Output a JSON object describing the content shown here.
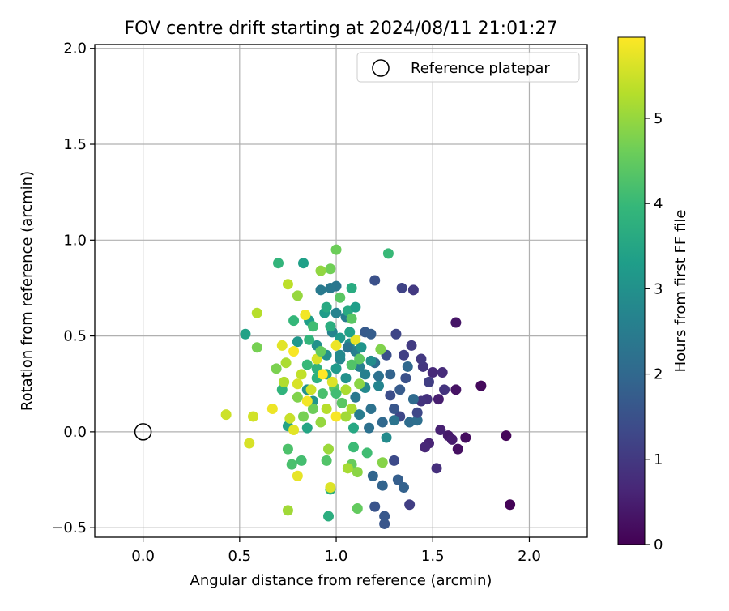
{
  "chart_data": {
    "type": "scatter",
    "title": "FOV centre drift starting at 2024/08/11 21:01:27",
    "xlabel": "Angular distance from reference (arcmin)",
    "ylabel": "Rotation from reference (arcmin)",
    "xlim": [
      -0.25,
      2.3
    ],
    "ylim": [
      -0.55,
      2.02
    ],
    "xticks": [
      0.0,
      0.5,
      1.0,
      1.5,
      2.0
    ],
    "xtick_labels": [
      "0.0",
      "0.5",
      "1.0",
      "1.5",
      "2.0"
    ],
    "yticks": [
      -0.5,
      0.0,
      0.5,
      1.0,
      1.5,
      2.0
    ],
    "ytick_labels": [
      "−0.5",
      "0.0",
      "0.5",
      "1.0",
      "1.5",
      "2.0"
    ],
    "grid": true,
    "legend": {
      "position": "top-right",
      "label": "Reference platepar"
    },
    "reference_point": {
      "x": 0.0,
      "y": 0.0
    },
    "colorbar": {
      "label": "Hours from first FF file",
      "range": [
        0,
        5.95
      ],
      "ticks": [
        0,
        1,
        2,
        3,
        4,
        5
      ],
      "tick_labels": [
        "0",
        "1",
        "2",
        "3",
        "4",
        "5"
      ],
      "colormap": [
        "#440154",
        "#482878",
        "#3e4989",
        "#31688e",
        "#26828e",
        "#1f9e89",
        "#35b779",
        "#6ece58",
        "#b5de2b",
        "#fde725"
      ]
    },
    "series": [
      {
        "name": "FOV centre",
        "points": [
          {
            "x": 1.9,
            "y": -0.38,
            "t": 0.05
          },
          {
            "x": 1.88,
            "y": -0.02,
            "t": 0.1
          },
          {
            "x": 1.75,
            "y": 0.24,
            "t": 0.15
          },
          {
            "x": 1.67,
            "y": -0.03,
            "t": 0.2
          },
          {
            "x": 1.63,
            "y": -0.09,
            "t": 0.25
          },
          {
            "x": 1.62,
            "y": 0.22,
            "t": 0.3
          },
          {
            "x": 1.62,
            "y": 0.57,
            "t": 0.35
          },
          {
            "x": 1.58,
            "y": -0.02,
            "t": 0.4
          },
          {
            "x": 1.6,
            "y": -0.04,
            "t": 0.45
          },
          {
            "x": 1.53,
            "y": 0.17,
            "t": 0.5
          },
          {
            "x": 1.54,
            "y": 0.01,
            "t": 0.55
          },
          {
            "x": 1.48,
            "y": -0.06,
            "t": 0.6
          },
          {
            "x": 1.46,
            "y": -0.08,
            "t": 0.65
          },
          {
            "x": 1.5,
            "y": 0.31,
            "t": 0.7
          },
          {
            "x": 1.55,
            "y": 0.31,
            "t": 0.75
          },
          {
            "x": 1.52,
            "y": -0.19,
            "t": 0.8
          },
          {
            "x": 1.47,
            "y": 0.17,
            "t": 0.85
          },
          {
            "x": 1.44,
            "y": 0.16,
            "t": 0.9
          },
          {
            "x": 1.45,
            "y": 0.34,
            "t": 0.95
          },
          {
            "x": 1.4,
            "y": 0.74,
            "t": 1.0
          },
          {
            "x": 1.39,
            "y": 0.45,
            "t": 1.05
          },
          {
            "x": 1.38,
            "y": -0.38,
            "t": 1.1
          },
          {
            "x": 1.35,
            "y": 0.4,
            "t": 1.15
          },
          {
            "x": 1.34,
            "y": 0.75,
            "t": 1.2
          },
          {
            "x": 1.31,
            "y": 0.51,
            "t": 1.25
          },
          {
            "x": 1.33,
            "y": 0.08,
            "t": 1.3
          },
          {
            "x": 1.3,
            "y": -0.15,
            "t": 1.35
          },
          {
            "x": 1.28,
            "y": 0.19,
            "t": 1.4
          },
          {
            "x": 1.26,
            "y": 0.4,
            "t": 1.45
          },
          {
            "x": 1.2,
            "y": 0.79,
            "t": 1.5
          },
          {
            "x": 1.2,
            "y": -0.39,
            "t": 1.55
          },
          {
            "x": 1.25,
            "y": -0.48,
            "t": 1.6
          },
          {
            "x": 1.25,
            "y": -0.44,
            "t": 1.65
          },
          {
            "x": 1.15,
            "y": 0.52,
            "t": 1.7
          },
          {
            "x": 1.18,
            "y": 0.51,
            "t": 1.75
          },
          {
            "x": 1.32,
            "y": -0.25,
            "t": 1.8
          },
          {
            "x": 1.35,
            "y": -0.29,
            "t": 1.85
          },
          {
            "x": 1.24,
            "y": -0.28,
            "t": 1.9
          },
          {
            "x": 1.19,
            "y": -0.23,
            "t": 1.95
          },
          {
            "x": 1.37,
            "y": 0.34,
            "t": 2.0
          },
          {
            "x": 1.4,
            "y": 0.17,
            "t": 2.05
          },
          {
            "x": 1.38,
            "y": 0.05,
            "t": 2.1
          },
          {
            "x": 1.42,
            "y": 0.06,
            "t": 2.15
          },
          {
            "x": 1.22,
            "y": 0.29,
            "t": 2.2
          },
          {
            "x": 1.18,
            "y": 0.12,
            "t": 2.25
          },
          {
            "x": 1.3,
            "y": 0.06,
            "t": 2.3
          },
          {
            "x": 1.0,
            "y": 0.76,
            "t": 2.35
          },
          {
            "x": 0.97,
            "y": 0.75,
            "t": 2.4
          },
          {
            "x": 0.92,
            "y": 0.74,
            "t": 2.45
          },
          {
            "x": 1.05,
            "y": 0.6,
            "t": 2.5
          },
          {
            "x": 1.1,
            "y": 0.42,
            "t": 2.55
          },
          {
            "x": 1.12,
            "y": 0.34,
            "t": 2.6
          },
          {
            "x": 1.0,
            "y": 0.62,
            "t": 2.65
          },
          {
            "x": 0.98,
            "y": 0.52,
            "t": 2.7
          },
          {
            "x": 1.02,
            "y": 0.38,
            "t": 2.75
          },
          {
            "x": 1.15,
            "y": 0.23,
            "t": 2.8
          },
          {
            "x": 1.26,
            "y": -0.03,
            "t": 2.85
          },
          {
            "x": 1.07,
            "y": 0.46,
            "t": 2.9
          },
          {
            "x": 0.95,
            "y": 0.4,
            "t": 2.95
          },
          {
            "x": 0.9,
            "y": 0.45,
            "t": 3.0
          },
          {
            "x": 0.85,
            "y": 0.22,
            "t": 3.05
          },
          {
            "x": 0.88,
            "y": 0.16,
            "t": 3.1
          },
          {
            "x": 0.8,
            "y": 0.47,
            "t": 3.15
          },
          {
            "x": 1.02,
            "y": 0.49,
            "t": 3.2
          },
          {
            "x": 0.94,
            "y": 0.62,
            "t": 3.25
          },
          {
            "x": 0.86,
            "y": 0.58,
            "t": 3.3
          },
          {
            "x": 0.83,
            "y": 0.88,
            "t": 3.35
          },
          {
            "x": 0.53,
            "y": 0.51,
            "t": 3.4
          },
          {
            "x": 0.75,
            "y": 0.03,
            "t": 3.45
          },
          {
            "x": 0.85,
            "y": 0.02,
            "t": 3.5
          },
          {
            "x": 1.09,
            "y": 0.02,
            "t": 3.55
          },
          {
            "x": 1.06,
            "y": 0.63,
            "t": 3.6
          },
          {
            "x": 1.08,
            "y": 0.75,
            "t": 3.65
          },
          {
            "x": 0.96,
            "y": -0.44,
            "t": 3.7
          },
          {
            "x": 0.97,
            "y": -0.3,
            "t": 3.75
          },
          {
            "x": 0.9,
            "y": 0.33,
            "t": 3.8
          },
          {
            "x": 0.72,
            "y": 0.22,
            "t": 3.85
          },
          {
            "x": 0.7,
            "y": 0.88,
            "t": 3.9
          },
          {
            "x": 0.78,
            "y": 0.58,
            "t": 3.95
          },
          {
            "x": 1.27,
            "y": 0.93,
            "t": 4.0
          },
          {
            "x": 1.09,
            "y": -0.08,
            "t": 4.05
          },
          {
            "x": 1.16,
            "y": -0.11,
            "t": 4.1
          },
          {
            "x": 0.82,
            "y": -0.15,
            "t": 4.15
          },
          {
            "x": 0.77,
            "y": -0.17,
            "t": 4.2
          },
          {
            "x": 0.75,
            "y": -0.09,
            "t": 4.25
          },
          {
            "x": 0.95,
            "y": -0.15,
            "t": 4.3
          },
          {
            "x": 0.99,
            "y": 0.23,
            "t": 4.35
          },
          {
            "x": 1.08,
            "y": 0.59,
            "t": 4.4
          },
          {
            "x": 1.12,
            "y": 0.38,
            "t": 4.45
          },
          {
            "x": 1.11,
            "y": -0.4,
            "t": 4.5
          },
          {
            "x": 1.08,
            "y": -0.17,
            "t": 4.55
          },
          {
            "x": 1.0,
            "y": 0.95,
            "t": 4.6
          },
          {
            "x": 0.97,
            "y": 0.85,
            "t": 4.65
          },
          {
            "x": 0.59,
            "y": 0.44,
            "t": 4.7
          },
          {
            "x": 0.69,
            "y": 0.33,
            "t": 4.75
          },
          {
            "x": 1.23,
            "y": 0.43,
            "t": 4.8
          },
          {
            "x": 1.24,
            "y": -0.16,
            "t": 4.85
          },
          {
            "x": 1.11,
            "y": -0.21,
            "t": 4.9
          },
          {
            "x": 0.92,
            "y": 0.84,
            "t": 4.95
          },
          {
            "x": 0.8,
            "y": 0.71,
            "t": 5.0
          },
          {
            "x": 0.96,
            "y": -0.09,
            "t": 5.05
          },
          {
            "x": 0.75,
            "y": -0.41,
            "t": 5.1
          },
          {
            "x": 1.06,
            "y": -0.19,
            "t": 5.15
          },
          {
            "x": 1.08,
            "y": 0.12,
            "t": 5.2
          },
          {
            "x": 0.73,
            "y": 0.26,
            "t": 5.25
          },
          {
            "x": 0.59,
            "y": 0.62,
            "t": 5.3
          },
          {
            "x": 0.75,
            "y": 0.77,
            "t": 5.35
          },
          {
            "x": 0.84,
            "y": 0.61,
            "t": 5.4
          },
          {
            "x": 0.76,
            "y": 0.07,
            "t": 5.45
          },
          {
            "x": 0.43,
            "y": 0.09,
            "t": 5.5
          },
          {
            "x": 0.57,
            "y": 0.08,
            "t": 5.55
          },
          {
            "x": 0.55,
            "y": -0.06,
            "t": 5.6
          },
          {
            "x": 0.97,
            "y": -0.29,
            "t": 5.65
          },
          {
            "x": 0.78,
            "y": 0.01,
            "t": 5.7
          },
          {
            "x": 0.8,
            "y": -0.23,
            "t": 5.75
          },
          {
            "x": 0.67,
            "y": 0.12,
            "t": 5.8
          },
          {
            "x": 0.84,
            "y": 0.61,
            "t": 5.85
          },
          {
            "x": 1.0,
            "y": 0.08,
            "t": 5.9
          },
          {
            "x": 1.1,
            "y": 0.18,
            "t": 2.4
          },
          {
            "x": 1.2,
            "y": 0.36,
            "t": 2.1
          },
          {
            "x": 1.15,
            "y": 0.3,
            "t": 2.6
          },
          {
            "x": 1.05,
            "y": 0.28,
            "t": 3.0
          },
          {
            "x": 1.0,
            "y": 0.33,
            "t": 3.2
          },
          {
            "x": 0.95,
            "y": 0.3,
            "t": 3.5
          },
          {
            "x": 0.9,
            "y": 0.28,
            "t": 3.8
          },
          {
            "x": 0.85,
            "y": 0.35,
            "t": 4.0
          },
          {
            "x": 0.93,
            "y": 0.2,
            "t": 4.2
          },
          {
            "x": 1.03,
            "y": 0.15,
            "t": 4.4
          },
          {
            "x": 0.88,
            "y": 0.12,
            "t": 4.6
          },
          {
            "x": 0.8,
            "y": 0.18,
            "t": 4.8
          },
          {
            "x": 0.92,
            "y": 0.05,
            "t": 5.0
          },
          {
            "x": 1.05,
            "y": 0.22,
            "t": 5.2
          },
          {
            "x": 0.82,
            "y": 0.3,
            "t": 5.4
          },
          {
            "x": 0.9,
            "y": 0.38,
            "t": 5.6
          },
          {
            "x": 1.0,
            "y": 0.45,
            "t": 5.8
          },
          {
            "x": 0.78,
            "y": 0.42,
            "t": 5.9
          },
          {
            "x": 0.72,
            "y": 0.45,
            "t": 5.7
          },
          {
            "x": 1.1,
            "y": 0.48,
            "t": 5.75
          },
          {
            "x": 0.98,
            "y": 0.26,
            "t": 5.65
          },
          {
            "x": 0.87,
            "y": 0.22,
            "t": 5.5
          },
          {
            "x": 0.95,
            "y": 0.12,
            "t": 5.3
          },
          {
            "x": 1.05,
            "y": 0.08,
            "t": 5.1
          },
          {
            "x": 1.12,
            "y": 0.25,
            "t": 4.9
          },
          {
            "x": 0.83,
            "y": 0.08,
            "t": 4.7
          },
          {
            "x": 0.92,
            "y": 0.42,
            "t": 4.5
          },
          {
            "x": 1.08,
            "y": 0.35,
            "t": 4.3
          },
          {
            "x": 1.0,
            "y": 0.2,
            "t": 4.1
          },
          {
            "x": 0.86,
            "y": 0.48,
            "t": 3.9
          },
          {
            "x": 0.97,
            "y": 0.55,
            "t": 3.7
          },
          {
            "x": 1.07,
            "y": 0.52,
            "t": 3.4
          },
          {
            "x": 1.13,
            "y": 0.44,
            "t": 3.1
          },
          {
            "x": 1.18,
            "y": 0.37,
            "t": 2.9
          },
          {
            "x": 1.22,
            "y": 0.24,
            "t": 2.7
          },
          {
            "x": 1.28,
            "y": 0.3,
            "t": 1.9
          },
          {
            "x": 1.33,
            "y": 0.22,
            "t": 1.7
          },
          {
            "x": 1.36,
            "y": 0.28,
            "t": 1.5
          },
          {
            "x": 1.42,
            "y": 0.1,
            "t": 1.3
          },
          {
            "x": 1.48,
            "y": 0.26,
            "t": 1.1
          },
          {
            "x": 1.56,
            "y": 0.22,
            "t": 0.9
          },
          {
            "x": 1.44,
            "y": 0.38,
            "t": 1.0
          },
          {
            "x": 1.3,
            "y": 0.12,
            "t": 1.6
          },
          {
            "x": 1.24,
            "y": 0.05,
            "t": 2.0
          },
          {
            "x": 1.17,
            "y": 0.02,
            "t": 2.2
          },
          {
            "x": 1.12,
            "y": 0.09,
            "t": 2.5
          },
          {
            "x": 0.95,
            "y": 0.65,
            "t": 3.6
          },
          {
            "x": 0.88,
            "y": 0.55,
            "t": 4.1
          },
          {
            "x": 1.02,
            "y": 0.7,
            "t": 4.4
          },
          {
            "x": 1.1,
            "y": 0.65,
            "t": 3.3
          },
          {
            "x": 0.74,
            "y": 0.36,
            "t": 5.2
          },
          {
            "x": 0.8,
            "y": 0.25,
            "t": 5.6
          },
          {
            "x": 0.85,
            "y": 0.16,
            "t": 5.85
          },
          {
            "x": 0.93,
            "y": 0.3,
            "t": 5.95
          },
          {
            "x": 1.02,
            "y": 0.4,
            "t": 2.8
          },
          {
            "x": 1.06,
            "y": 0.44,
            "t": 2.3
          }
        ]
      }
    ]
  }
}
